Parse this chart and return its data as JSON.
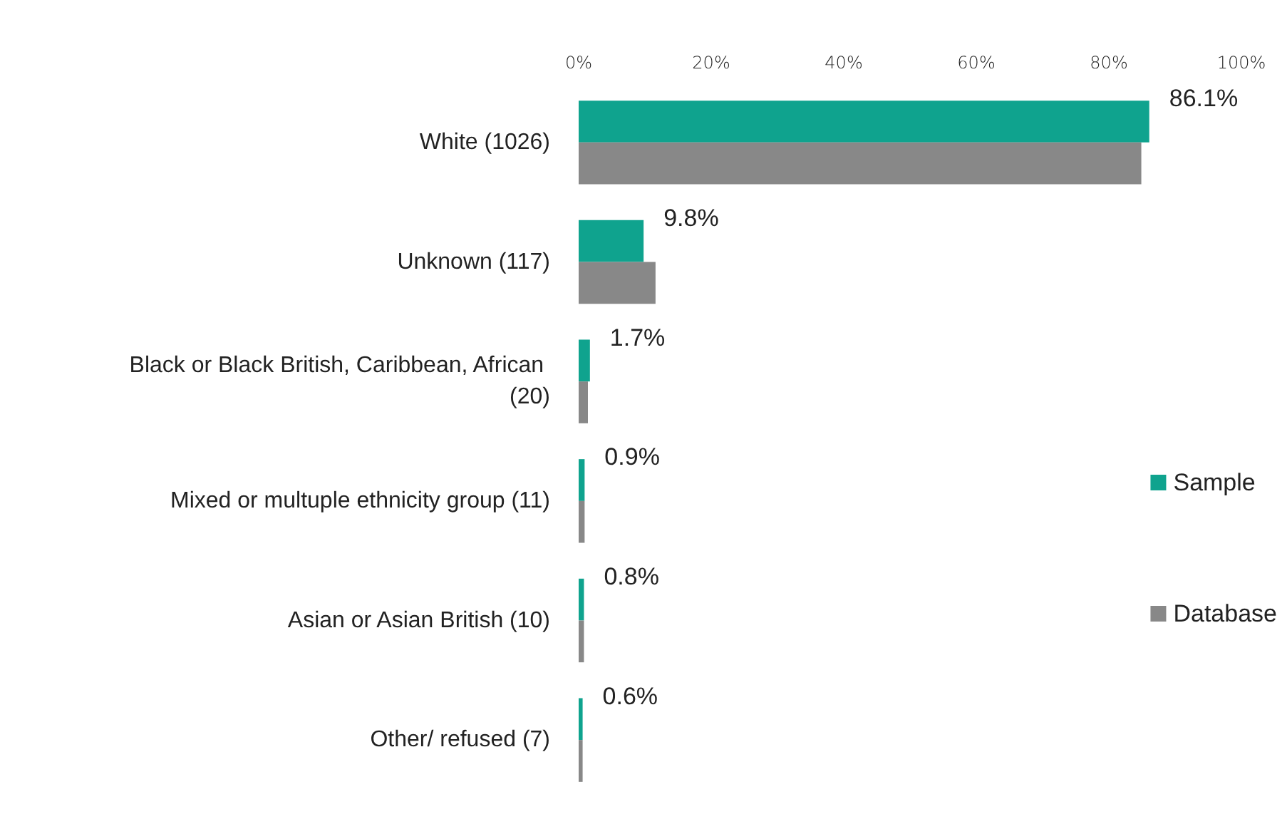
{
  "chart_data": {
    "type": "bar",
    "orientation": "horizontal",
    "categories": [
      "White (1026)",
      "Unknown (117)",
      "Black or Black British, Caribbean, African (20)",
      "Mixed or multuple ethnicity group (11)",
      "Asian or Asian British (10)",
      "Other/ refused (7)"
    ],
    "series": [
      {
        "name": "Sample",
        "color": "#0fa38e",
        "values": [
          86.1,
          9.8,
          1.7,
          0.9,
          0.8,
          0.6
        ],
        "value_labels": [
          "86.1%",
          "9.8%",
          "1.7%",
          "0.9%",
          "0.8%",
          "0.6%"
        ]
      },
      {
        "name": "Database",
        "color": "#888888",
        "values": [
          84.9,
          11.6,
          1.4,
          0.9,
          0.8,
          0.6
        ]
      }
    ],
    "xlim": [
      0,
      100
    ],
    "xticks": [
      {
        "value": 0,
        "label": "0%"
      },
      {
        "value": 20,
        "label": "20%"
      },
      {
        "value": 40,
        "label": "40%"
      },
      {
        "value": 60,
        "label": "60%"
      },
      {
        "value": 80,
        "label": "80%"
      },
      {
        "value": 100,
        "label": "100%"
      }
    ],
    "grid": false,
    "legend": "right"
  }
}
